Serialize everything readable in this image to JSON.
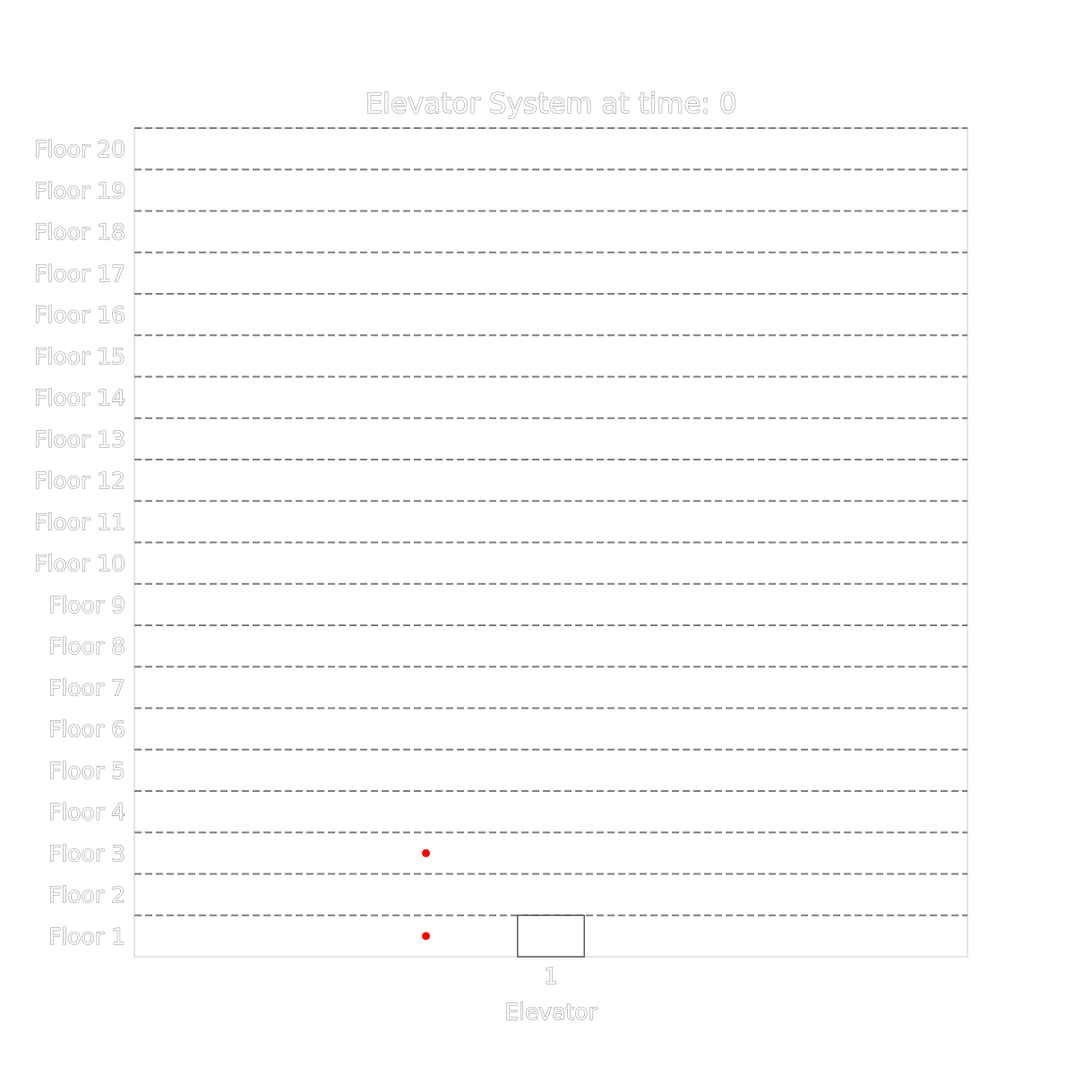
{
  "chart_data": {
    "type": "scatter",
    "title": "Elevator System at time: 0",
    "xlabel": "Elevator",
    "ylabel": "",
    "floors": [
      "Floor 1",
      "Floor 2",
      "Floor 3",
      "Floor 4",
      "Floor 5",
      "Floor 6",
      "Floor 7",
      "Floor 8",
      "Floor 9",
      "Floor 10",
      "Floor 11",
      "Floor 12",
      "Floor 13",
      "Floor 14",
      "Floor 15",
      "Floor 16",
      "Floor 17",
      "Floor 18",
      "Floor 19",
      "Floor 20"
    ],
    "elevators": [
      {
        "label": "1",
        "floor": 1
      }
    ],
    "waiting_passengers": [
      {
        "floor": 1
      },
      {
        "floor": 3
      }
    ],
    "grid": true,
    "colors": {
      "passenger": "#ff0000",
      "floor_line": "#808080",
      "elevator_outline": "#333333"
    }
  }
}
